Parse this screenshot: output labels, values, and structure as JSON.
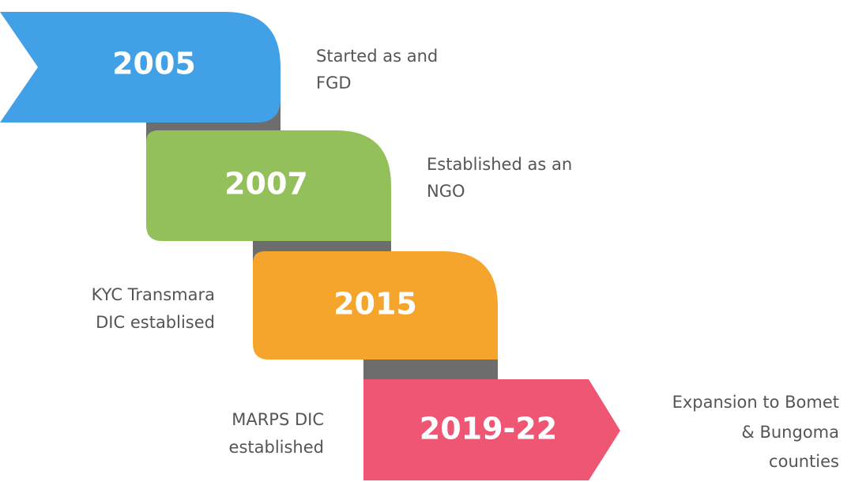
{
  "timeline": [
    {
      "year": "2005",
      "description": [
        "Started as and",
        "FGD"
      ]
    },
    {
      "year": "2007",
      "description": [
        "Established as an",
        "NGO"
      ]
    },
    {
      "year": "2015",
      "description": [
        "KYC Transmara",
        "DIC establised"
      ]
    },
    {
      "year": "2019-22",
      "description": [
        "MARPS DIC",
        "established"
      ],
      "description2": [
        "Expansion to Bomet",
        "& Bungoma",
        "counties"
      ]
    }
  ]
}
